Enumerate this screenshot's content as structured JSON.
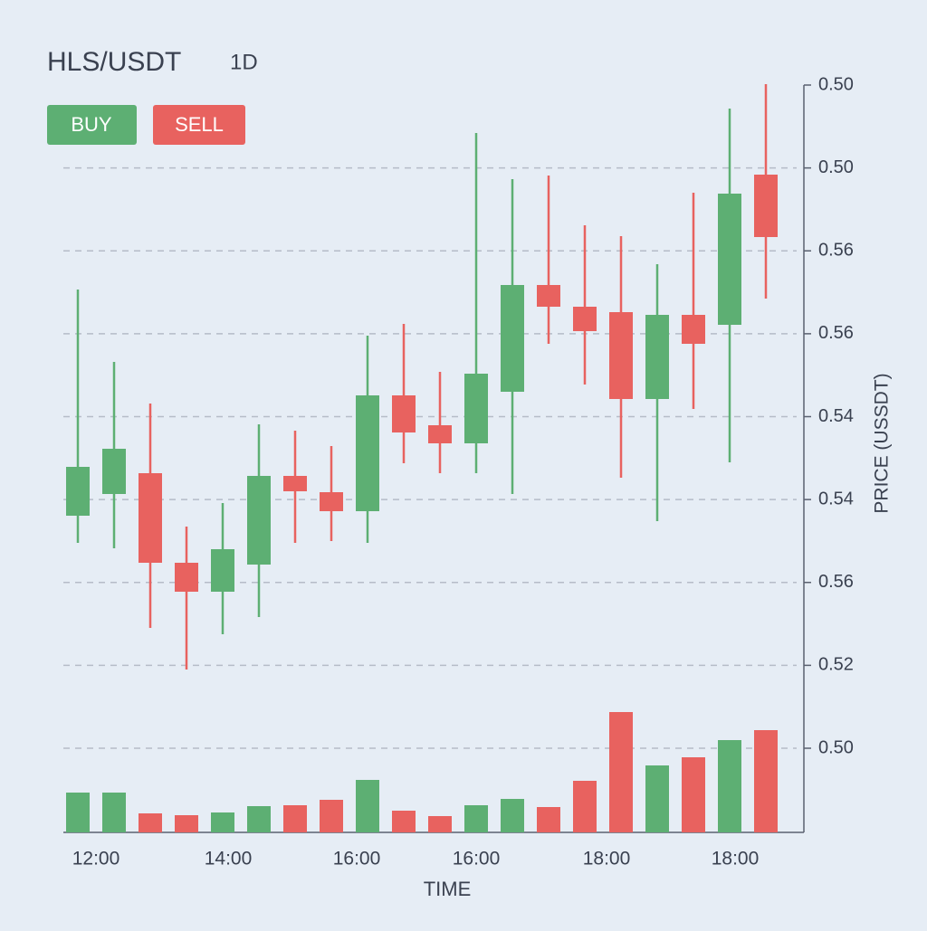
{
  "header": {
    "title": "HLS/USDT",
    "timeframe": "1D"
  },
  "buttons": {
    "buy": "BUY",
    "sell": "SELL"
  },
  "chart_data": {
    "type": "candlestick",
    "y_label": "PRICE (USSDT)",
    "x_label": "TIME",
    "price_labels": [
      "0.50",
      "0.50",
      "0.56",
      "0.56",
      "0.54",
      "0.54",
      "0.56",
      "0.52",
      "0.50"
    ],
    "time_labels": [
      "12:00",
      "14:00",
      "16:00",
      "16:00",
      "18:00",
      "18:00"
    ],
    "ylim": [
      0,
      734
    ],
    "up_color": "#5daf73",
    "down_color": "#e8625f",
    "grid": true,
    "open": [
      257,
      281,
      304,
      205,
      173,
      203,
      301,
      283,
      262,
      390,
      357,
      337,
      394,
      512,
      488,
      482,
      386,
      479,
      468,
      634
    ],
    "high": [
      507,
      427,
      381,
      245,
      271,
      358,
      351,
      334,
      456,
      469,
      416,
      680,
      629,
      633,
      578,
      566,
      535,
      614,
      707,
      734
    ],
    "low": [
      227,
      221,
      133,
      87,
      126,
      145,
      227,
      229,
      227,
      315,
      304,
      304,
      281,
      447,
      402,
      299,
      251,
      375,
      316,
      497
    ],
    "close": [
      311,
      331,
      205,
      173,
      220,
      301,
      284,
      262,
      390,
      349,
      337,
      414,
      512,
      488,
      461,
      386,
      479,
      447,
      613,
      565
    ],
    "volume": [
      44,
      44,
      21,
      19,
      22,
      29,
      30,
      36,
      58,
      24,
      18,
      30,
      37,
      28,
      57,
      133,
      74,
      83,
      102,
      113
    ],
    "volume_lim": [
      0,
      140
    ]
  }
}
